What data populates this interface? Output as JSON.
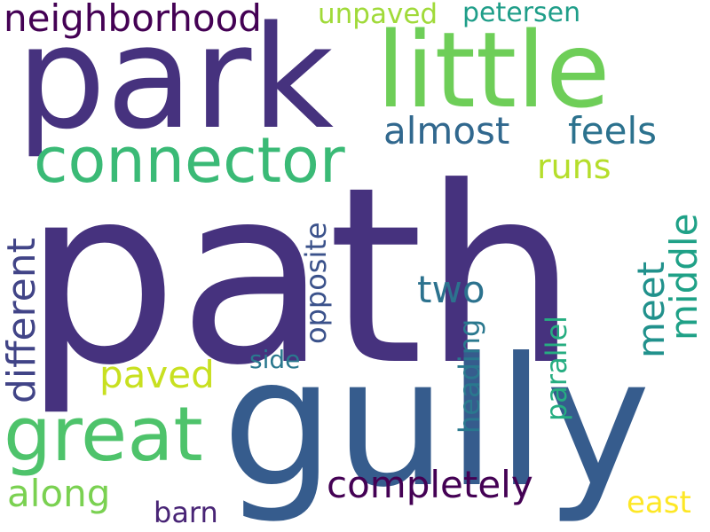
{
  "words": {
    "path": {
      "text": "path",
      "color": "#46327e"
    },
    "gully": {
      "text": "gully",
      "color": "#365c8d"
    },
    "park": {
      "text": "park",
      "color": "#46327e"
    },
    "little": {
      "text": "little",
      "color": "#6ece58"
    },
    "connector": {
      "text": "connector",
      "color": "#3aba76"
    },
    "great": {
      "text": "great",
      "color": "#4ec36b"
    },
    "neighborhood": {
      "text": "neighborhood",
      "color": "#440154"
    },
    "unpaved": {
      "text": "unpaved",
      "color": "#a0da39"
    },
    "petersen": {
      "text": "petersen",
      "color": "#1f9e89"
    },
    "almost": {
      "text": "almost",
      "color": "#31688e"
    },
    "feels": {
      "text": "feels",
      "color": "#2c728e"
    },
    "runs": {
      "text": "runs",
      "color": "#b5de2b"
    },
    "two": {
      "text": "two",
      "color": "#2c728e"
    },
    "paved": {
      "text": "paved",
      "color": "#c8e020"
    },
    "different": {
      "text": "different",
      "color": "#414487"
    },
    "opposite": {
      "text": "opposite",
      "color": "#3b528b"
    },
    "side": {
      "text": "side",
      "color": "#2a788e"
    },
    "meet": {
      "text": "meet",
      "color": "#21918c"
    },
    "middle": {
      "text": "middle",
      "color": "#1fa187"
    },
    "heading": {
      "text": "heading",
      "color": "#2a788e"
    },
    "parallel": {
      "text": "parallel",
      "color": "#26ad81"
    },
    "completely": {
      "text": "completely",
      "color": "#440154"
    },
    "along": {
      "text": "along",
      "color": "#7ad151"
    },
    "barn": {
      "text": "barn",
      "color": "#482475"
    },
    "east": {
      "text": "east",
      "color": "#fde725"
    }
  }
}
